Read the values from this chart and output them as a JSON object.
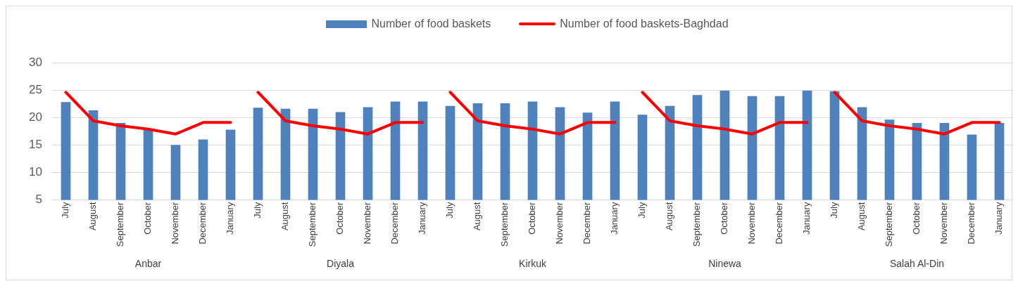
{
  "chart_data": [
    {
      "type": "bar",
      "xlabel": "Anbar",
      "categories": [
        "July",
        "August",
        "September",
        "October",
        "November",
        "December",
        "January"
      ],
      "ylim": [
        5,
        30
      ],
      "yticks": [
        5,
        10,
        15,
        20,
        25,
        30
      ],
      "grid": "y",
      "legend": "top",
      "series": [
        {
          "name": "Number of food baskets",
          "color": "#4f81bd",
          "values": [
            22.8,
            21.3,
            19.0,
            17.9,
            15.0,
            16.0,
            17.8
          ]
        },
        {
          "name": "Number of food baskets-Baghdad",
          "type": "line",
          "color": "#ff0000",
          "marker": "none",
          "values": [
            24.6,
            19.4,
            18.5,
            17.9,
            17.0,
            19.1,
            19.1
          ]
        }
      ]
    },
    {
      "type": "bar",
      "xlabel": "Diyala",
      "categories": [
        "July",
        "August",
        "September",
        "October",
        "November",
        "December",
        "January"
      ],
      "ylim": [
        5,
        30
      ],
      "yticks": [
        5,
        10,
        15,
        20,
        25,
        30
      ],
      "grid": "y",
      "tick_labels": "x",
      "series": [
        {
          "color": "#4f81bd",
          "values": [
            21.8,
            21.6,
            21.6,
            21.0,
            21.9,
            22.9,
            22.9
          ]
        },
        {
          "type": "line",
          "color": "#ff0000",
          "marker": "none",
          "values": [
            24.6,
            19.4,
            18.5,
            17.9,
            17.0,
            19.1,
            19.1
          ]
        }
      ]
    },
    {
      "type": "bar",
      "xlabel": "Kirkuk",
      "categories": [
        "July",
        "August",
        "September",
        "October",
        "November",
        "December",
        "January"
      ],
      "ylim": [
        5,
        30
      ],
      "yticks": [
        5,
        10,
        15,
        20,
        25,
        30
      ],
      "grid": "y",
      "tick_labels": "x",
      "series": [
        {
          "color": "#4f81bd",
          "values": [
            22.1,
            22.6,
            22.6,
            22.9,
            21.9,
            20.9,
            22.9
          ]
        },
        {
          "type": "line",
          "color": "#ff0000",
          "marker": "none",
          "values": [
            24.6,
            19.4,
            18.5,
            17.9,
            17.0,
            19.1,
            19.1
          ]
        }
      ]
    },
    {
      "type": "bar",
      "xlabel": "Ninewa",
      "categories": [
        "July",
        "August",
        "September",
        "October",
        "November",
        "December",
        "January"
      ],
      "ylim": [
        5,
        30
      ],
      "yticks": [
        5,
        10,
        15,
        20,
        25,
        30
      ],
      "grid": "y",
      "tick_labels": "x",
      "series": [
        {
          "color": "#4f81bd",
          "values": [
            20.5,
            22.1,
            24.1,
            24.9,
            23.9,
            23.9,
            24.9
          ]
        },
        {
          "type": "line",
          "color": "#ff0000",
          "marker": "none",
          "values": [
            24.6,
            19.4,
            18.5,
            17.9,
            17.0,
            19.1,
            19.1
          ]
        }
      ]
    },
    {
      "type": "bar",
      "xlabel": "Salah Al-Din",
      "categories": [
        "July",
        "August",
        "September",
        "October",
        "November",
        "December",
        "January"
      ],
      "ylim": [
        5,
        30
      ],
      "yticks": [
        5,
        10,
        15,
        20,
        25,
        30
      ],
      "grid": "y",
      "tick_labels": "x",
      "series": [
        {
          "color": "#4f81bd",
          "values": [
            24.8,
            21.9,
            19.6,
            19.0,
            19.0,
            16.9,
            19.0
          ]
        },
        {
          "type": "line",
          "color": "#ff0000",
          "marker": "none",
          "values": [
            24.6,
            19.4,
            18.5,
            17.9,
            17.0,
            19.1,
            19.1
          ]
        }
      ]
    }
  ]
}
